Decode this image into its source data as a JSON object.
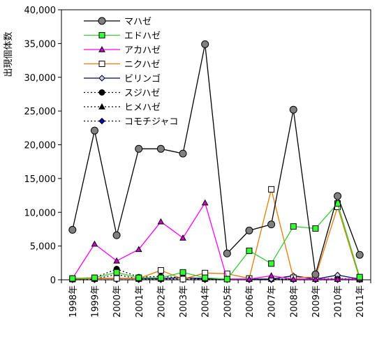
{
  "chart_data": {
    "type": "line",
    "title": "",
    "xlabel": "",
    "ylabel": "出現個体数",
    "ylim": [
      0,
      40000
    ],
    "yticks": [
      0,
      5000,
      10000,
      15000,
      20000,
      25000,
      30000,
      35000,
      40000
    ],
    "ytick_labels": [
      "0",
      "5,000",
      "10,000",
      "15,000",
      "20,000",
      "25,000",
      "30,000",
      "35,000",
      "40,000"
    ],
    "grid": false,
    "legend_position": "top-left",
    "categories": [
      "1998年",
      "1999年",
      "2000年",
      "2001年",
      "2002年",
      "2003年",
      "2004年",
      "2005年",
      "2006年",
      "2007年",
      "2008年",
      "2009年",
      "2010年",
      "2011年"
    ],
    "series": [
      {
        "name": "マハゼ",
        "color": "#000000",
        "marker": "circle",
        "marker_fill": "#808080",
        "dash": "solid",
        "values": [
          7400,
          22100,
          6600,
          19400,
          19400,
          18700,
          34900,
          3900,
          7300,
          8200,
          25200,
          800,
          12400,
          3700
        ]
      },
      {
        "name": "エドハゼ",
        "color": "#33cc33",
        "marker": "square",
        "marker_fill": "#33ff33",
        "dash": "solid",
        "values": [
          200,
          300,
          1100,
          300,
          300,
          1100,
          300,
          100,
          4300,
          2400,
          7900,
          7600,
          11300,
          400
        ]
      },
      {
        "name": "アカハゼ",
        "color": "#ff00ff",
        "marker": "triangle",
        "marker_fill": "#cc00cc",
        "dash": "solid",
        "values": [
          200,
          5300,
          2800,
          4500,
          8600,
          6200,
          11400,
          100,
          100,
          600,
          100,
          100,
          100,
          100
        ]
      },
      {
        "name": "ニクハゼ",
        "color": "#ee7700",
        "marker": "square",
        "marker_fill": "#ffffff",
        "dash": "solid",
        "values": [
          100,
          200,
          200,
          200,
          1400,
          100,
          1000,
          900,
          200,
          13400,
          300,
          400,
          10800,
          100
        ]
      },
      {
        "name": "ビリンゴ",
        "color": "#000066",
        "marker": "diamond",
        "marker_fill": "#ccccff",
        "dash": "solid",
        "values": [
          100,
          200,
          200,
          200,
          200,
          300,
          200,
          100,
          100,
          100,
          600,
          100,
          700,
          100
        ]
      },
      {
        "name": "スジハゼ",
        "color": "#000000",
        "marker": "circle",
        "marker_fill": "#000000",
        "dash": "dotted",
        "values": [
          200,
          300,
          1600,
          400,
          500,
          300,
          100,
          100,
          100,
          100,
          100,
          100,
          200,
          100
        ]
      },
      {
        "name": "ヒメハゼ",
        "color": "#000000",
        "marker": "triangle",
        "marker_fill": "#000000",
        "dash": "dotted",
        "values": [
          100,
          100,
          800,
          100,
          100,
          100,
          100,
          100,
          100,
          100,
          100,
          100,
          100,
          100
        ]
      },
      {
        "name": "コモチジャコ",
        "color": "#000000",
        "marker": "diamond",
        "marker_fill": "#0000cc",
        "dash": "dotted",
        "values": [
          0,
          0,
          0,
          0,
          0,
          0,
          0,
          0,
          0,
          0,
          0,
          0,
          0,
          0
        ]
      }
    ]
  }
}
